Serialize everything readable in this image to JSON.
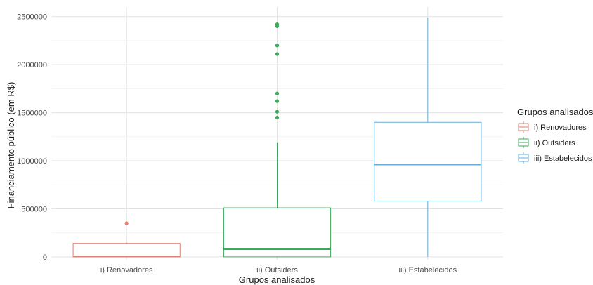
{
  "chart_data": {
    "type": "boxplot",
    "xlabel": "Grupos analisados",
    "ylabel": "Financiamento público (em R$)",
    "ylim": [
      -30000,
      2600000
    ],
    "yticks": [
      0,
      500000,
      1000000,
      1500000,
      2000000,
      2500000
    ],
    "ytick_labels": [
      "0",
      "500000",
      "1000000",
      "1500000",
      "2000000",
      "2500000"
    ],
    "grid": true,
    "legend": {
      "title": "Grupos analisados",
      "position": "right"
    },
    "categories": [
      "i) Renovadores",
      "ii) Outsiders",
      "iii) Estabelecidos"
    ],
    "series": [
      {
        "name": "i) Renovadores",
        "color": "#e07b6e",
        "whisker_low": 0,
        "q1": 0,
        "median": 5000,
        "q3": 140000,
        "whisker_high": 150000,
        "outliers": [
          350000
        ]
      },
      {
        "name": "ii) Outsiders",
        "color": "#3aaa5a",
        "whisker_low": 0,
        "q1": 0,
        "median": 80000,
        "q3": 510000,
        "whisker_high": 1190000,
        "outliers": [
          1450000,
          1510000,
          1620000,
          1700000,
          2110000,
          2200000,
          2400000,
          2420000
        ]
      },
      {
        "name": "iii) Estabelecidos",
        "color": "#6aaed6",
        "whisker_low": 0,
        "q1": 580000,
        "median": 960000,
        "q3": 1400000,
        "whisker_high": 2490000,
        "outliers": []
      }
    ]
  }
}
